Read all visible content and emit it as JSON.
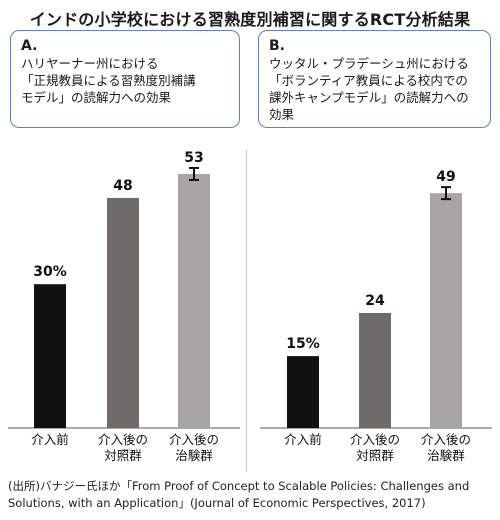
{
  "title": "インドの小学校における習熟度別補習に関するRCT分析結果",
  "panels": [
    {
      "letter": "A.",
      "description": "ハリヤーナー州における\n「正規教員による習熟度別補講\nモデル」の読解力への効果"
    },
    {
      "letter": "B.",
      "description": "ウッタル・プラデーシュ州における\n「ボランティア教員による校内での\n課外キャンプモデル」の読解力への\n効果"
    }
  ],
  "chart_data": [
    {
      "type": "bar",
      "categories": [
        "介入前",
        "介入後の\n対照群",
        "介入後の\n治験群"
      ],
      "values": [
        30,
        48,
        53
      ],
      "data_labels": [
        "30%",
        "48",
        "53"
      ],
      "error_bar_on": [
        false,
        false,
        true
      ],
      "colors": [
        "#111111",
        "#6e6b68",
        "#a8a6a4"
      ],
      "ylim": [
        0,
        58
      ]
    },
    {
      "type": "bar",
      "categories": [
        "介入前",
        "介入後の\n対照群",
        "介入後の\n治験群"
      ],
      "values": [
        15,
        24,
        49
      ],
      "data_labels": [
        "15%",
        "24",
        "49"
      ],
      "error_bar_on": [
        false,
        false,
        true
      ],
      "colors": [
        "#111111",
        "#6e6b68",
        "#a8a6a4"
      ],
      "ylim": [
        0,
        58
      ]
    }
  ],
  "source": "(出所)バナジー氏ほか「From Proof of Concept to Scalable Policies: Challenges and Solutions, with an Application」(Journal of Economic Perspectives, 2017)"
}
